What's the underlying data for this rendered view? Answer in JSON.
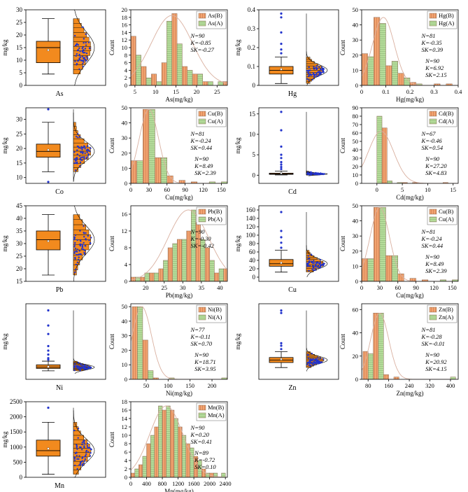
{
  "figure": {
    "box_ylabel": "mg/kg",
    "hist_ylabel": "Count",
    "colors": {
      "box_fill": "#f28a1e",
      "bar_b": "#f2a470",
      "bar_a": "#b5dc9a",
      "dot": "#2233cc",
      "curve": "#d9b0a0"
    }
  },
  "chart_data": [
    {
      "element": "As",
      "box": {
        "type": "box",
        "xlabel": "As",
        "ylabel": "mg/kg",
        "yticks": [
          0,
          5,
          10,
          15,
          20,
          25,
          30
        ],
        "ylim": [
          0,
          30
        ],
        "whisker_low": 4.5,
        "q1": 9,
        "median": 15,
        "q3": 17.5,
        "whisker_high": 26.5,
        "mean": 14,
        "outliers": []
      },
      "hist": {
        "type": "bar",
        "xlabel": "As(mg/kg)",
        "ylabel": "Count",
        "xlim": [
          4,
          27.5
        ],
        "ylim": [
          0,
          20
        ],
        "xticks": [
          5,
          10,
          15,
          20,
          25
        ],
        "yticks": [
          0,
          2,
          4,
          6,
          8,
          10,
          12,
          14,
          16,
          18,
          20
        ],
        "bin_edges": [
          4,
          5.25,
          6.5,
          7.75,
          9,
          10.25,
          11.5,
          12.75,
          14,
          15.25,
          16.5,
          17.75,
          19,
          20.25,
          21.5,
          22.75,
          24,
          25.25,
          26.5,
          27.75
        ],
        "series": [
          {
            "name": "As(B)",
            "values": [
              13,
              8,
              5,
              2,
              3,
              1,
              6,
              17,
              19,
              11,
              5,
              4,
              3,
              3,
              1,
              1,
              0,
              1,
              1
            ]
          }
        ],
        "curve": {
          "peak": 18.5,
          "mean": 14,
          "sd": 5
        },
        "legend": [
          "As(B)",
          "As(A)"
        ],
        "stats": [
          {
            "N": "N=90",
            "K": "K=-0.85",
            "SK": "SK=-0.27"
          }
        ]
      }
    },
    {
      "element": "Hg",
      "box": {
        "type": "box",
        "xlabel": "Hg",
        "ylabel": "mg/kg",
        "yticks": [
          0.0,
          0.1,
          0.2,
          0.3,
          0.4
        ],
        "ylim": [
          0,
          0.4
        ],
        "whisker_low": 0.01,
        "q1": 0.06,
        "median": 0.08,
        "q3": 0.1,
        "whisker_high": 0.15,
        "mean": 0.085,
        "outliers": [
          0.17,
          0.19,
          0.22,
          0.28,
          0.36,
          0.38
        ]
      },
      "hist": {
        "type": "bar",
        "xlabel": "Hg(mg/kg)",
        "ylabel": "Count",
        "xlim": [
          0,
          0.4
        ],
        "ylim": [
          0,
          50
        ],
        "xticks": [
          0.0,
          0.1,
          0.2,
          0.3,
          0.4
        ],
        "yticks": [
          0,
          10,
          20,
          30,
          40,
          50
        ],
        "bin_edges": [
          0,
          0.025,
          0.05,
          0.075,
          0.1,
          0.125,
          0.15,
          0.175,
          0.2,
          0.225,
          0.25,
          0.275,
          0.3,
          0.325,
          0.35,
          0.375,
          0.4
        ],
        "series": [
          {
            "name": "Hg(B)",
            "values": [
              21,
              19,
              45,
              41,
              13,
              16,
              8,
              5,
              2,
              1,
              0,
              0,
              1,
              0,
              1,
              0
            ]
          }
        ],
        "curve": {
          "peak": 45,
          "mean": 0.09,
          "sd": 0.045
        },
        "legend": [
          "Hg(B)",
          "Hg(A)"
        ],
        "stats": [
          {
            "N": "N=81",
            "K": "K=-0.35",
            "SK": "SK=0.39"
          },
          {
            "N": "N=90",
            "K": "K=6.92",
            "SK": "SK=2.15"
          }
        ]
      }
    },
    {
      "element": "Co",
      "box": {
        "type": "box",
        "xlabel": "Co",
        "ylabel": "mg/kg",
        "yticks": [
          10,
          15,
          20,
          25,
          30
        ],
        "ylim": [
          8,
          34
        ],
        "whisker_low": 12,
        "q1": 17,
        "median": 19,
        "q3": 21.5,
        "whisker_high": 29,
        "mean": 19.5,
        "outliers": [
          8.5,
          33.5
        ]
      },
      "hist": {
        "type": "bar",
        "xlabel": "Cu(mg/kg)",
        "ylabel": "Count",
        "xlim": [
          0,
          160
        ],
        "ylim": [
          0,
          50
        ],
        "xticks": [
          0,
          30,
          60,
          90,
          120,
          150
        ],
        "yticks": [
          0,
          10,
          20,
          30,
          40,
          50
        ],
        "bin_edges": [
          0,
          10,
          20,
          30,
          40,
          50,
          60,
          70,
          80,
          90,
          100,
          110,
          120,
          130,
          140,
          150,
          160
        ],
        "series": [
          {
            "name": "Cu(B)",
            "values": [
              15,
              15,
              49,
              49,
              17,
              17,
              5,
              0,
              2,
              0,
              1,
              0,
              0,
              1,
              0,
              1
            ]
          }
        ],
        "curve": {
          "peak": 49,
          "mean": 30,
          "sd": 16
        },
        "legend": [
          "Cu(B)",
          "Cu(A)"
        ],
        "stats": [
          {
            "N": "N=81",
            "K": "K=-0.24",
            "SK": "SK=0.44"
          },
          {
            "N": "N=90",
            "K": "K=8.49",
            "SK": "SK=2.39"
          }
        ]
      }
    },
    {
      "element": "Cd",
      "box": {
        "type": "box",
        "xlabel": "Cd",
        "ylabel": "mg/kg",
        "yticks": [
          0,
          5,
          10,
          15
        ],
        "ylim": [
          -2,
          16.5
        ],
        "whisker_low": 0.05,
        "q1": 0.2,
        "median": 0.3,
        "q3": 0.5,
        "whisker_high": 1,
        "mean": 0.5,
        "outliers": [
          1.5,
          2,
          2.6,
          3.2,
          4.2,
          5,
          7,
          11,
          15.5
        ]
      },
      "hist": {
        "type": "bar",
        "xlabel": "Cd(mg/kg)",
        "ylabel": "Count",
        "xlim": [
          -3,
          16
        ],
        "ylim": [
          0,
          90
        ],
        "xticks": [
          0,
          5,
          10,
          15
        ],
        "yticks": [
          0,
          10,
          20,
          30,
          40,
          50,
          60,
          70,
          80,
          90
        ],
        "bin_edges": [
          -1,
          0,
          1,
          2,
          3,
          4,
          5,
          6,
          7,
          8,
          9,
          10,
          11,
          12,
          13,
          14,
          15,
          16
        ],
        "series": [
          {
            "name": "Cd(B)",
            "values": [
              0,
              80,
              66,
              3,
              0,
              1,
              1,
              0,
              1,
              0,
              0,
              0,
              0,
              0,
              1,
              0,
              0
            ]
          }
        ],
        "curve": {
          "peak": 62,
          "mean": 0.8,
          "sd": 2.5
        },
        "legend": [
          "Cd(B)",
          "Cd(A)"
        ],
        "stats": [
          {
            "N": "N=67",
            "K": "K=-0.46",
            "SK": "SK=0.54"
          },
          {
            "N": "N=90",
            "K": "K=27.20",
            "SK": "SK=4.83"
          }
        ]
      }
    },
    {
      "element": "Pb",
      "box": {
        "type": "box",
        "xlabel": "Pb",
        "ylabel": "mg/kg",
        "yticks": [
          15,
          20,
          25,
          30,
          35,
          40,
          45
        ],
        "ylim": [
          15,
          45
        ],
        "whisker_low": 17.5,
        "q1": 27.5,
        "median": 31.5,
        "q3": 35,
        "whisker_high": 41.5,
        "mean": 31,
        "outliers": []
      },
      "hist": {
        "type": "bar",
        "xlabel": "Pb(mg/kg)",
        "ylabel": "Count",
        "xlim": [
          16,
          42
        ],
        "ylim": [
          0,
          18
        ],
        "xticks": [
          20,
          25,
          30,
          35,
          40
        ],
        "yticks": [
          0,
          4,
          8,
          12,
          16
        ],
        "bin_edges": [
          16,
          17.25,
          18.5,
          19.75,
          21,
          22.25,
          23.5,
          24.75,
          26,
          27.25,
          28.5,
          29.75,
          31,
          32.25,
          33.5,
          34.75,
          36,
          37.25,
          38.5,
          39.75,
          41,
          42
        ],
        "series": [
          {
            "name": "Pb(B)",
            "values": [
              1,
              1,
              1,
              2,
              2,
              2,
              3,
              5,
              8,
              9,
              10,
              10,
              12,
              17,
              14,
              10,
              8,
              5,
              2,
              3,
              3
            ]
          }
        ],
        "curve": {
          "peak": 17,
          "mean": 31.5,
          "sd": 5.5
        },
        "legend": [
          "Pb(B)",
          "Pb(A)"
        ],
        "stats": [
          {
            "N": "N=90",
            "K": "K=-0.30",
            "SK": "SK=-0.42"
          }
        ]
      }
    },
    {
      "element": "Cu",
      "box": {
        "type": "box",
        "xlabel": "Cu",
        "ylabel": "mg/kg",
        "yticks": [
          0,
          20,
          40,
          60,
          80,
          100,
          120,
          140,
          160
        ],
        "ylim": [
          -10,
          170
        ],
        "whisker_low": 12,
        "q1": 26,
        "median": 32,
        "q3": 42,
        "whisker_high": 64,
        "mean": 34,
        "outliers": [
          70,
          82,
          95,
          110,
          155
        ]
      },
      "hist": {
        "type": "bar",
        "xlabel": "Cu(mg/kg)",
        "ylabel": "Count",
        "xlim": [
          0,
          160
        ],
        "ylim": [
          0,
          50
        ],
        "xticks": [
          0,
          30,
          60,
          90,
          120,
          150
        ],
        "yticks": [
          0,
          10,
          20,
          30,
          40,
          50
        ],
        "bin_edges": [
          0,
          10,
          20,
          30,
          40,
          50,
          60,
          70,
          80,
          90,
          100,
          110,
          120,
          130,
          140,
          150,
          160
        ],
        "series": [
          {
            "name": "Cu(B)",
            "values": [
              15,
              15,
              49,
              49,
              17,
              17,
              5,
              0,
              2,
              0,
              1,
              0,
              0,
              1,
              0,
              1
            ]
          }
        ],
        "curve": {
          "peak": 49,
          "mean": 30,
          "sd": 16
        },
        "legend": [
          "Cu(B)",
          "Cu(A)"
        ],
        "stats": [
          {
            "N": "N=81",
            "K": "K=-0.24",
            "SK": "SK=0.44"
          },
          {
            "N": "N=90",
            "K": "K=8.49",
            "SK": "SK=2.39"
          }
        ]
      }
    },
    {
      "element": "Ni",
      "box": {
        "type": "box",
        "xlabel": "Ni",
        "ylabel": "mg/kg",
        "yticks": [],
        "ylim": [
          0,
          250
        ],
        "whisker_low": 28,
        "q1": 36,
        "median": 40,
        "q3": 48,
        "whisker_high": 60,
        "mean": 42,
        "outliers": [
          65,
          70,
          82,
          95,
          110,
          150,
          178,
          228
        ]
      },
      "hist": {
        "type": "bar",
        "xlabel": "Ni(mg/kg)",
        "ylabel": "Count",
        "xlim": [
          15,
          235
        ],
        "ylim": [
          0,
          52
        ],
        "xticks": [
          50,
          100,
          150,
          200
        ],
        "yticks": [
          0,
          10,
          20,
          30,
          40,
          50
        ],
        "bin_edges": [
          18,
          30,
          42,
          54,
          66,
          78,
          90,
          102,
          114,
          126,
          138,
          150,
          162,
          174,
          186,
          198,
          210,
          222,
          234
        ],
        "series": [
          {
            "name": "Ni(B)",
            "values": [
              50,
              50,
              27,
              6,
              1,
              0,
              0,
              1,
              0,
              0,
              0,
              0,
              0,
              0,
              0,
              0,
              0,
              1
            ]
          }
        ],
        "curve": {
          "peak": 50,
          "mean": 40,
          "sd": 22
        },
        "legend": [
          "Ni(B)",
          "Ni(A)"
        ],
        "stats": [
          {
            "N": "N=77",
            "K": "K=-0.11",
            "SK": "SK=0.70"
          },
          {
            "N": "N=90",
            "K": "K=18.71",
            "SK": "SK=3.95"
          }
        ]
      }
    },
    {
      "element": "Zn",
      "box": {
        "type": "box",
        "xlabel": "Zn",
        "ylabel": "mg/kg",
        "yticks": [],
        "ylim": [
          0,
          450
        ],
        "whisker_low": 70,
        "q1": 100,
        "median": 115,
        "q3": 130,
        "whisker_high": 165,
        "mean": 120,
        "outliers": [
          180,
          200,
          215,
          395,
          410
        ]
      },
      "hist": {
        "type": "bar",
        "xlabel": "Zn(mg/kg)",
        "ylabel": "Count",
        "xlim": [
          55,
          430
        ],
        "ylim": [
          0,
          65
        ],
        "xticks": [
          80,
          160,
          240,
          320,
          400
        ],
        "yticks": [
          0,
          20,
          40,
          60
        ],
        "bin_edges": [
          60,
          80,
          100,
          120,
          140,
          160,
          180,
          200,
          220,
          240,
          260,
          280,
          300,
          320,
          340,
          360,
          380,
          400,
          420
        ],
        "series": [
          {
            "name": "Zn(B)",
            "values": [
              24,
              22,
              57,
              57,
              4,
              0,
              2,
              0,
              0,
              0,
              0,
              0,
              0,
              0,
              0,
              0,
              0,
              2
            ]
          }
        ],
        "curve": {
          "peak": 57,
          "mean": 125,
          "sd": 35
        },
        "legend": [
          "Zn(B)",
          "Zn(A)"
        ],
        "stats": [
          {
            "N": "N=81",
            "K": "K=-0.28",
            "SK": "SK=-0.01"
          },
          {
            "N": "N=90",
            "K": "K=20.92",
            "SK": "SK=4.15"
          }
        ]
      }
    },
    {
      "element": "Mn",
      "box": {
        "type": "box",
        "xlabel": "Mn",
        "ylabel": "mg/kg",
        "yticks": [
          0,
          500,
          1000,
          1500,
          2000,
          2500
        ],
        "ylim": [
          0,
          2500
        ],
        "whisker_low": 100,
        "q1": 700,
        "median": 880,
        "q3": 1230,
        "whisker_high": 1820,
        "mean": 950,
        "outliers": [
          2300
        ]
      },
      "hist": {
        "type": "bar",
        "xlabel": "Mn(mg/kg)",
        "ylabel": "Count",
        "xlim": [
          0,
          2450
        ],
        "ylim": [
          0,
          18
        ],
        "xticks": [
          0,
          400,
          800,
          1200,
          1600,
          2000,
          2400
        ],
        "yticks": [
          0,
          2,
          4,
          6,
          8,
          10,
          12,
          14,
          16,
          18
        ],
        "bin_edges": [
          0,
          100,
          200,
          300,
          400,
          500,
          600,
          700,
          800,
          900,
          1000,
          1100,
          1200,
          1300,
          1400,
          1500,
          1600,
          1700,
          1800,
          1900,
          2000,
          2100,
          2200,
          2300,
          2400
        ],
        "series": [
          {
            "name": "Mn(B)",
            "values": [
              1,
              2,
              3,
              5,
              8,
              10,
              12,
              17,
              16,
              17,
              16,
              14,
              12,
              10,
              8,
              7,
              5,
              4,
              2,
              1,
              1,
              1,
              0,
              1
            ]
          }
        ],
        "curve": {
          "peak": 17,
          "mean": 900,
          "sd": 420
        },
        "legend": [
          "Mn(B)",
          "Mn(A)"
        ],
        "stats": [
          {
            "N": "N=90",
            "K": "K=0.20",
            "SK": "SK=0.41"
          },
          {
            "N": "N=89",
            "K": "K=-0.72",
            "SK": "SK=0.10"
          }
        ]
      }
    }
  ]
}
